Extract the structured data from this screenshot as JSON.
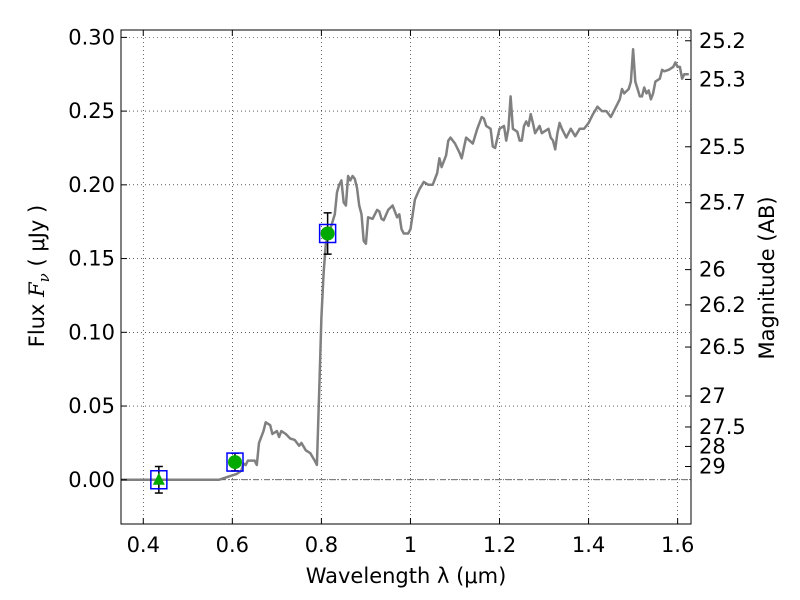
{
  "chart_data": {
    "type": "line",
    "title": "",
    "xlabel": "Wavelength  λ (μm)",
    "ylabel": "Flux  F_ν  ( μJy )",
    "ylabel_parts": {
      "prefix": "Flux  ",
      "symbol": "F",
      "subscript": "ν",
      "suffix": "  ( μJy )"
    },
    "y2label": "Magnitude (AB)",
    "xlim": [
      0.35,
      1.63
    ],
    "ylim": [
      -0.03,
      0.305
    ],
    "xticks": [
      0.4,
      0.6,
      0.8,
      1.0,
      1.2,
      1.4,
      1.6
    ],
    "xtick_labels": [
      "0.4",
      "0.6",
      "0.8",
      "1",
      "1.2",
      "1.4",
      "1.6"
    ],
    "yticks": [
      0.0,
      0.05,
      0.1,
      0.15,
      0.2,
      0.25,
      0.3
    ],
    "ytick_labels": [
      "0.00",
      "0.05",
      "0.10",
      "0.15",
      "0.20",
      "0.25",
      "0.30"
    ],
    "y2ticks": [
      {
        "label": "25.2",
        "flux": 0.2977
      },
      {
        "label": "25.3",
        "flux": 0.2715
      },
      {
        "label": "25.5",
        "flux": 0.2258
      },
      {
        "label": "25.7",
        "flux": 0.1879
      },
      {
        "label": "26",
        "flux": 0.1425
      },
      {
        "label": "26.2",
        "flux": 0.1186
      },
      {
        "label": "26.5",
        "flux": 0.09
      },
      {
        "label": "27",
        "flux": 0.0568
      },
      {
        "label": "27.5",
        "flux": 0.0358
      },
      {
        "label": "28",
        "flux": 0.0226
      },
      {
        "label": "29",
        "flux": 0.009
      }
    ],
    "grid": true,
    "zero_line": true,
    "series": [
      {
        "type": "line",
        "color": "#808080",
        "points": [
          [
            0.35,
            0.0
          ],
          [
            0.57,
            0.0
          ],
          [
            0.59,
            0.002
          ],
          [
            0.61,
            0.004
          ],
          [
            0.62,
            0.006
          ],
          [
            0.625,
            0.011
          ],
          [
            0.63,
            0.01
          ],
          [
            0.635,
            0.013
          ],
          [
            0.65,
            0.013
          ],
          [
            0.655,
            0.01
          ],
          [
            0.66,
            0.025
          ],
          [
            0.67,
            0.033
          ],
          [
            0.675,
            0.039
          ],
          [
            0.685,
            0.037
          ],
          [
            0.69,
            0.031
          ],
          [
            0.7,
            0.033
          ],
          [
            0.705,
            0.029
          ],
          [
            0.71,
            0.033
          ],
          [
            0.72,
            0.031
          ],
          [
            0.73,
            0.028
          ],
          [
            0.74,
            0.027
          ],
          [
            0.75,
            0.023
          ],
          [
            0.755,
            0.025
          ],
          [
            0.765,
            0.02
          ],
          [
            0.775,
            0.018
          ],
          [
            0.785,
            0.013
          ],
          [
            0.79,
            0.01
          ],
          [
            0.795,
            0.06
          ],
          [
            0.8,
            0.11
          ],
          [
            0.805,
            0.14
          ],
          [
            0.81,
            0.16
          ],
          [
            0.82,
            0.17
          ],
          [
            0.83,
            0.18
          ],
          [
            0.835,
            0.195
          ],
          [
            0.84,
            0.2
          ],
          [
            0.845,
            0.203
          ],
          [
            0.85,
            0.188
          ],
          [
            0.855,
            0.186
          ],
          [
            0.86,
            0.206
          ],
          [
            0.865,
            0.203
          ],
          [
            0.87,
            0.206
          ],
          [
            0.875,
            0.204
          ],
          [
            0.88,
            0.198
          ],
          [
            0.885,
            0.186
          ],
          [
            0.89,
            0.18
          ],
          [
            0.895,
            0.162
          ],
          [
            0.9,
            0.16
          ],
          [
            0.905,
            0.178
          ],
          [
            0.915,
            0.177
          ],
          [
            0.925,
            0.183
          ],
          [
            0.93,
            0.182
          ],
          [
            0.935,
            0.177
          ],
          [
            0.94,
            0.176
          ],
          [
            0.95,
            0.183
          ],
          [
            0.96,
            0.186
          ],
          [
            0.97,
            0.178
          ],
          [
            0.975,
            0.18
          ],
          [
            0.98,
            0.17
          ],
          [
            0.985,
            0.167
          ],
          [
            0.995,
            0.167
          ],
          [
            1.0,
            0.17
          ],
          [
            1.01,
            0.19
          ],
          [
            1.02,
            0.197
          ],
          [
            1.03,
            0.202
          ],
          [
            1.04,
            0.2
          ],
          [
            1.05,
            0.2
          ],
          [
            1.06,
            0.208
          ],
          [
            1.065,
            0.218
          ],
          [
            1.07,
            0.212
          ],
          [
            1.08,
            0.22
          ],
          [
            1.085,
            0.23
          ],
          [
            1.09,
            0.232
          ],
          [
            1.1,
            0.228
          ],
          [
            1.11,
            0.222
          ],
          [
            1.115,
            0.218
          ],
          [
            1.12,
            0.225
          ],
          [
            1.125,
            0.232
          ],
          [
            1.14,
            0.228
          ],
          [
            1.15,
            0.238
          ],
          [
            1.16,
            0.246
          ],
          [
            1.165,
            0.245
          ],
          [
            1.17,
            0.24
          ],
          [
            1.18,
            0.238
          ],
          [
            1.185,
            0.226
          ],
          [
            1.19,
            0.225
          ],
          [
            1.2,
            0.238
          ],
          [
            1.21,
            0.24
          ],
          [
            1.215,
            0.23
          ],
          [
            1.22,
            0.238
          ],
          [
            1.225,
            0.26
          ],
          [
            1.23,
            0.238
          ],
          [
            1.24,
            0.236
          ],
          [
            1.245,
            0.23
          ],
          [
            1.25,
            0.23
          ],
          [
            1.255,
            0.24
          ],
          [
            1.26,
            0.243
          ],
          [
            1.265,
            0.24
          ],
          [
            1.27,
            0.248
          ],
          [
            1.275,
            0.242
          ],
          [
            1.28,
            0.235
          ],
          [
            1.29,
            0.24
          ],
          [
            1.295,
            0.235
          ],
          [
            1.3,
            0.236
          ],
          [
            1.31,
            0.238
          ],
          [
            1.315,
            0.232
          ],
          [
            1.32,
            0.23
          ],
          [
            1.325,
            0.224
          ],
          [
            1.33,
            0.235
          ],
          [
            1.335,
            0.242
          ],
          [
            1.34,
            0.238
          ],
          [
            1.35,
            0.232
          ],
          [
            1.36,
            0.238
          ],
          [
            1.37,
            0.233
          ],
          [
            1.38,
            0.238
          ],
          [
            1.39,
            0.238
          ],
          [
            1.4,
            0.242
          ],
          [
            1.41,
            0.248
          ],
          [
            1.42,
            0.253
          ],
          [
            1.43,
            0.25
          ],
          [
            1.44,
            0.25
          ],
          [
            1.45,
            0.246
          ],
          [
            1.46,
            0.252
          ],
          [
            1.47,
            0.258
          ],
          [
            1.475,
            0.265
          ],
          [
            1.48,
            0.262
          ],
          [
            1.49,
            0.265
          ],
          [
            1.495,
            0.27
          ],
          [
            1.5,
            0.292
          ],
          [
            1.505,
            0.27
          ],
          [
            1.51,
            0.265
          ],
          [
            1.515,
            0.26
          ],
          [
            1.52,
            0.26
          ],
          [
            1.525,
            0.266
          ],
          [
            1.53,
            0.262
          ],
          [
            1.535,
            0.264
          ],
          [
            1.54,
            0.258
          ],
          [
            1.545,
            0.262
          ],
          [
            1.55,
            0.27
          ],
          [
            1.56,
            0.272
          ],
          [
            1.565,
            0.278
          ],
          [
            1.57,
            0.277
          ],
          [
            1.58,
            0.278
          ],
          [
            1.59,
            0.28
          ],
          [
            1.595,
            0.283
          ],
          [
            1.6,
            0.28
          ],
          [
            1.605,
            0.28
          ],
          [
            1.61,
            0.272
          ],
          [
            1.615,
            0.275
          ],
          [
            1.625,
            0.275
          ]
        ]
      },
      {
        "type": "photometry",
        "points": [
          {
            "x": 0.435,
            "y": 0.0,
            "err": 0.009,
            "marker": "triangle"
          },
          {
            "x": 0.606,
            "y": 0.012,
            "err": 0.006,
            "marker": "circle"
          },
          {
            "x": 0.814,
            "y": 0.167,
            "err": 0.014,
            "marker": "circle"
          }
        ],
        "marker_color": "#00aa00",
        "box_color": "#0000ff",
        "errorbar_color": "#000000"
      }
    ]
  }
}
